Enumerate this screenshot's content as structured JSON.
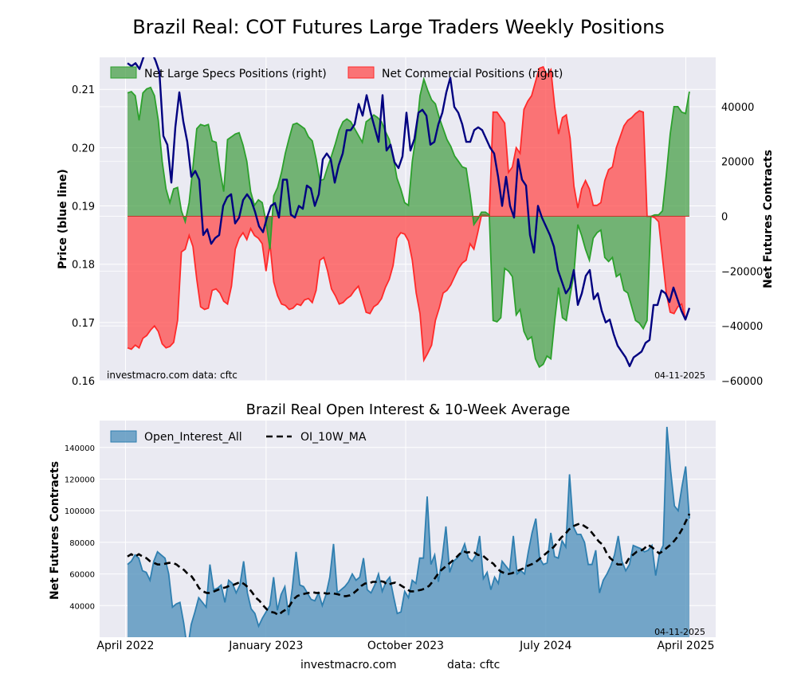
{
  "page": {
    "title": "Brazil Real: COT Futures Large Traders Weekly Positions",
    "footer_site": "investmacro.com",
    "footer_data": "data: cftc"
  },
  "colors": {
    "specs_fill": "#3f9b3f",
    "specs_line": "#2ca02c",
    "comm_fill": "#ff4b4b",
    "comm_line": "#ff2a2a",
    "price_line": "#000080",
    "oi_fill": "#5593bd",
    "oi_line": "#2f7fb0",
    "ma_line": "#000000",
    "panel_bg": "#eaeaf2"
  },
  "chart_data": [
    {
      "type": "line",
      "title": "",
      "ylabel": "Price (blue line)",
      "y2label": "Net Futures Contracts",
      "ylim": [
        0.16,
        0.2155
      ],
      "y2lim": [
        -60000,
        58000
      ],
      "yticks": [
        0.16,
        0.17,
        0.18,
        0.19,
        0.2,
        0.21
      ],
      "ytick_labels": [
        "0.16",
        "0.17",
        "0.18",
        "0.19",
        "0.20",
        "0.21"
      ],
      "y2ticks": [
        -60000,
        -40000,
        -20000,
        0,
        20000,
        40000
      ],
      "y2tick_labels": [
        "−60000",
        "−40000",
        "−20000",
        "0",
        "20000",
        "40000"
      ],
      "legend_position": "top-left",
      "grid": true,
      "annotation_left": "investmacro.com    data: cftc",
      "annotation_right": "04-11-2025",
      "x_start": "2022-04-05",
      "x_end": "2025-04-08",
      "series": [
        {
          "name": "Net Large Specs Positions (right)",
          "kind": "area",
          "values": [
            45000,
            45500,
            44000,
            35000,
            45000,
            46500,
            47000,
            44000,
            35000,
            20000,
            10000,
            5000,
            10000,
            10500,
            2000,
            -2000,
            5000,
            18000,
            32000,
            33500,
            33000,
            33500,
            27500,
            27000,
            17000,
            9000,
            28000,
            29000,
            30000,
            30500,
            26000,
            20000,
            9000,
            4000,
            6000,
            5000,
            -2000,
            -12000,
            7500,
            10500,
            16000,
            23000,
            28500,
            33500,
            34000,
            33000,
            32000,
            29000,
            27500,
            21000,
            13000,
            13500,
            18000,
            22000,
            26500,
            31500,
            34500,
            35500,
            34500,
            32000,
            29500,
            27000,
            34500,
            35500,
            37000,
            36000,
            34500,
            31000,
            28000,
            22000,
            14000,
            10000,
            5000,
            4000,
            20000,
            30000,
            44000,
            50000,
            46000,
            42500,
            41000,
            36000,
            32000,
            28000,
            25500,
            22000,
            20000,
            18000,
            17500,
            8000,
            -3000,
            -1000,
            1500,
            1500,
            500,
            -38000,
            -38500,
            -37000,
            -19000,
            -20000,
            -22000,
            -36000,
            -34000,
            -42000,
            -45000,
            -44000,
            -52000,
            -55000,
            -54000,
            -51000,
            -52000,
            -38000,
            -26000,
            -37000,
            -38000,
            -29000,
            -21000,
            -3000,
            -7000,
            -12000,
            -16000,
            -8000,
            -6000,
            -5000,
            -15000,
            -16500,
            -15000,
            -22000,
            -21000,
            -27000,
            -28000,
            -33000,
            -38000,
            -39000,
            -41000,
            -38000,
            0,
            500,
            500,
            2000,
            15000,
            30000,
            40000,
            40000,
            38000,
            37500,
            45500
          ]
        },
        {
          "name": "Net Commercial Positions (right)",
          "kind": "area",
          "values": [
            -48000,
            -48500,
            -47000,
            -48000,
            -44500,
            -43500,
            -41500,
            -40000,
            -42000,
            -46500,
            -48000,
            -47500,
            -46000,
            -38000,
            -13000,
            -12000,
            -7000,
            -11000,
            -23000,
            -33000,
            -34000,
            -33500,
            -27000,
            -26500,
            -28000,
            -31000,
            -32000,
            -25500,
            -12000,
            -8000,
            -6000,
            -8500,
            -4500,
            -7000,
            -8000,
            -10000,
            -20000,
            -10000,
            -24000,
            -29000,
            -32000,
            -32500,
            -34000,
            -33500,
            -32000,
            -32500,
            -30500,
            -30000,
            -31500,
            -27000,
            -16000,
            -15000,
            -20000,
            -26500,
            -29000,
            -32000,
            -31500,
            -30000,
            -29000,
            -27000,
            -25500,
            -30000,
            -35000,
            -35500,
            -33000,
            -32000,
            -30000,
            -26000,
            -23000,
            -18000,
            -8000,
            -6000,
            -6500,
            -9000,
            -16000,
            -28000,
            -35500,
            -52500,
            -50000,
            -47000,
            -38000,
            -33500,
            -28000,
            -27000,
            -25000,
            -22000,
            -19000,
            -17000,
            -16000,
            -10000,
            -12000,
            -6000,
            500,
            500,
            0,
            38000,
            38000,
            36000,
            34000,
            16000,
            18000,
            25000,
            23000,
            39000,
            42000,
            44000,
            49000,
            54000,
            54500,
            51500,
            53500,
            40000,
            30000,
            36000,
            37000,
            28500,
            11000,
            3000,
            10000,
            13000,
            10000,
            4000,
            4000,
            5000,
            13000,
            17000,
            18000,
            25000,
            29000,
            33000,
            35000,
            36000,
            37500,
            38500,
            38000,
            0,
            0,
            -500,
            -2000,
            -15000,
            -28000,
            -35000,
            -35500,
            -33000,
            -32000,
            -38000
          ]
        },
        {
          "name": "Price",
          "kind": "line",
          "values": [
            0.2145,
            0.214,
            0.2145,
            0.2135,
            0.2155,
            0.2165,
            0.2165,
            0.215,
            0.213,
            0.202,
            0.2005,
            0.194,
            0.2035,
            0.2095,
            0.2045,
            0.201,
            0.195,
            0.196,
            0.1945,
            0.185,
            0.186,
            0.1835,
            0.1845,
            0.185,
            0.19,
            0.1915,
            0.192,
            0.187,
            0.188,
            0.191,
            0.192,
            0.191,
            0.189,
            0.1865,
            0.1855,
            0.188,
            0.19,
            0.1905,
            0.188,
            0.1945,
            0.1945,
            0.1885,
            0.188,
            0.19,
            0.1895,
            0.1935,
            0.193,
            0.19,
            0.192,
            0.198,
            0.199,
            0.198,
            0.194,
            0.197,
            0.199,
            0.203,
            0.203,
            0.204,
            0.2075,
            0.2055,
            0.209,
            0.206,
            0.2035,
            0.201,
            0.209,
            0.1995,
            0.2005,
            0.1975,
            0.1965,
            0.1985,
            0.206,
            0.1995,
            0.2015,
            0.206,
            0.2065,
            0.2055,
            0.2005,
            0.201,
            0.204,
            0.206,
            0.2095,
            0.212,
            0.207,
            0.206,
            0.204,
            0.201,
            0.201,
            0.203,
            0.2035,
            0.203,
            0.2015,
            0.2,
            0.199,
            0.195,
            0.19,
            0.195,
            0.19,
            0.188,
            0.198,
            0.1945,
            0.1935,
            0.185,
            0.182,
            0.19,
            0.188,
            0.1865,
            0.185,
            0.183,
            0.179,
            0.177,
            0.175,
            0.176,
            0.179,
            0.173,
            0.175,
            0.178,
            0.179,
            0.174,
            0.175,
            0.172,
            0.17,
            0.1705,
            0.168,
            0.166,
            0.165,
            0.164,
            0.1625,
            0.164,
            0.1645,
            0.165,
            0.1665,
            0.167,
            0.173,
            0.173,
            0.1755,
            0.175,
            0.1735,
            0.176,
            0.174,
            0.172,
            0.1705,
            0.1725
          ]
        }
      ]
    },
    {
      "type": "area",
      "title": "Brazil Real Open Interest & 10-Week Average",
      "ylabel": "Net Futures Contracts",
      "ylim": [
        20000,
        157000
      ],
      "yticks": [
        40000,
        60000,
        80000,
        100000,
        120000,
        140000
      ],
      "ytick_labels": [
        "40000",
        "60000",
        "80000",
        "100000",
        "120000",
        "140000"
      ],
      "x_tick_labels": [
        "April 2022",
        "January 2023",
        "October 2023",
        "July 2024",
        "April 2025"
      ],
      "legend_position": "top-left",
      "grid": true,
      "annotation_right": "04-11-2025",
      "series": [
        {
          "name": "Open_Interest_All",
          "kind": "area",
          "values": [
            66000,
            68000,
            72000,
            70000,
            62000,
            61000,
            56000,
            68000,
            74000,
            72000,
            70000,
            60000,
            39000,
            41000,
            42000,
            29000,
            12000,
            28000,
            36000,
            45000,
            42000,
            39000,
            66000,
            50000,
            51000,
            53000,
            42000,
            56000,
            54000,
            48000,
            53000,
            68000,
            48000,
            38000,
            35000,
            27000,
            32000,
            36000,
            40000,
            58000,
            37000,
            47000,
            52000,
            34000,
            51000,
            74000,
            53000,
            52000,
            48000,
            44000,
            43000,
            48000,
            40000,
            47000,
            58000,
            79000,
            48000,
            50000,
            52000,
            55000,
            60000,
            56000,
            58000,
            70000,
            50000,
            48000,
            53000,
            60000,
            49000,
            55000,
            58000,
            46000,
            35000,
            36000,
            49000,
            45000,
            56000,
            54000,
            70000,
            70000,
            109000,
            66000,
            72000,
            55000,
            70000,
            90000,
            61000,
            68000,
            70000,
            73000,
            79000,
            70000,
            68000,
            72000,
            84000,
            57000,
            61000,
            50000,
            58000,
            54000,
            68000,
            65000,
            62000,
            84000,
            60000,
            62000,
            60000,
            74000,
            86000,
            95000,
            70000,
            66000,
            67000,
            86000,
            71000,
            70000,
            81000,
            77000,
            123000,
            90000,
            85000,
            85000,
            80000,
            66000,
            66000,
            75000,
            48000,
            56000,
            60000,
            65000,
            72000,
            84000,
            68000,
            62000,
            66000,
            78000,
            77000,
            76000,
            74000,
            75000,
            78000,
            59000,
            73000,
            78000,
            153000,
            125000,
            103000,
            100000,
            115000,
            128000,
            95000
          ]
        },
        {
          "name": "OI_10W_MA",
          "kind": "line",
          "values": [
            71000,
            72500,
            71000,
            72500,
            71000,
            70000,
            68000,
            67000,
            66000,
            66000,
            66500,
            67000,
            67000,
            66000,
            64000,
            62500,
            60000,
            58500,
            55000,
            51000,
            49000,
            48000,
            48000,
            49000,
            50000,
            51000,
            51500,
            52500,
            53000,
            54000,
            55000,
            53500,
            51500,
            48500,
            45000,
            43000,
            40000,
            37500,
            36000,
            35500,
            34000,
            36000,
            37500,
            40000,
            44000,
            46000,
            47000,
            47500,
            48000,
            48500,
            48000,
            48000,
            48000,
            47500,
            48000,
            47500,
            47000,
            46000,
            46000,
            46500,
            48000,
            50000,
            52500,
            54000,
            54000,
            55000,
            55000,
            55500,
            55000,
            53000,
            54000,
            54500,
            53500,
            52000,
            50500,
            49000,
            49000,
            49500,
            50000,
            51000,
            52500,
            55500,
            59000,
            62000,
            64000,
            66000,
            68000,
            70000,
            72500,
            74500,
            73500,
            74000,
            73500,
            72000,
            72000,
            70000,
            68000,
            66500,
            63500,
            61500,
            60500,
            60000,
            60500,
            61500,
            62500,
            63500,
            65000,
            66000,
            67000,
            69000,
            71000,
            73000,
            75000,
            77000,
            80000,
            83000,
            85000,
            88000,
            90000,
            91000,
            92000,
            90500,
            89000,
            86500,
            83500,
            80500,
            78500,
            73500,
            70000,
            68000,
            66000,
            66000,
            66000,
            70000,
            72000,
            74000,
            74500,
            76000,
            78500,
            77000,
            75000,
            73000,
            74500,
            76500,
            78500,
            81000,
            84000,
            88000,
            93000,
            98000
          ]
        }
      ]
    }
  ]
}
